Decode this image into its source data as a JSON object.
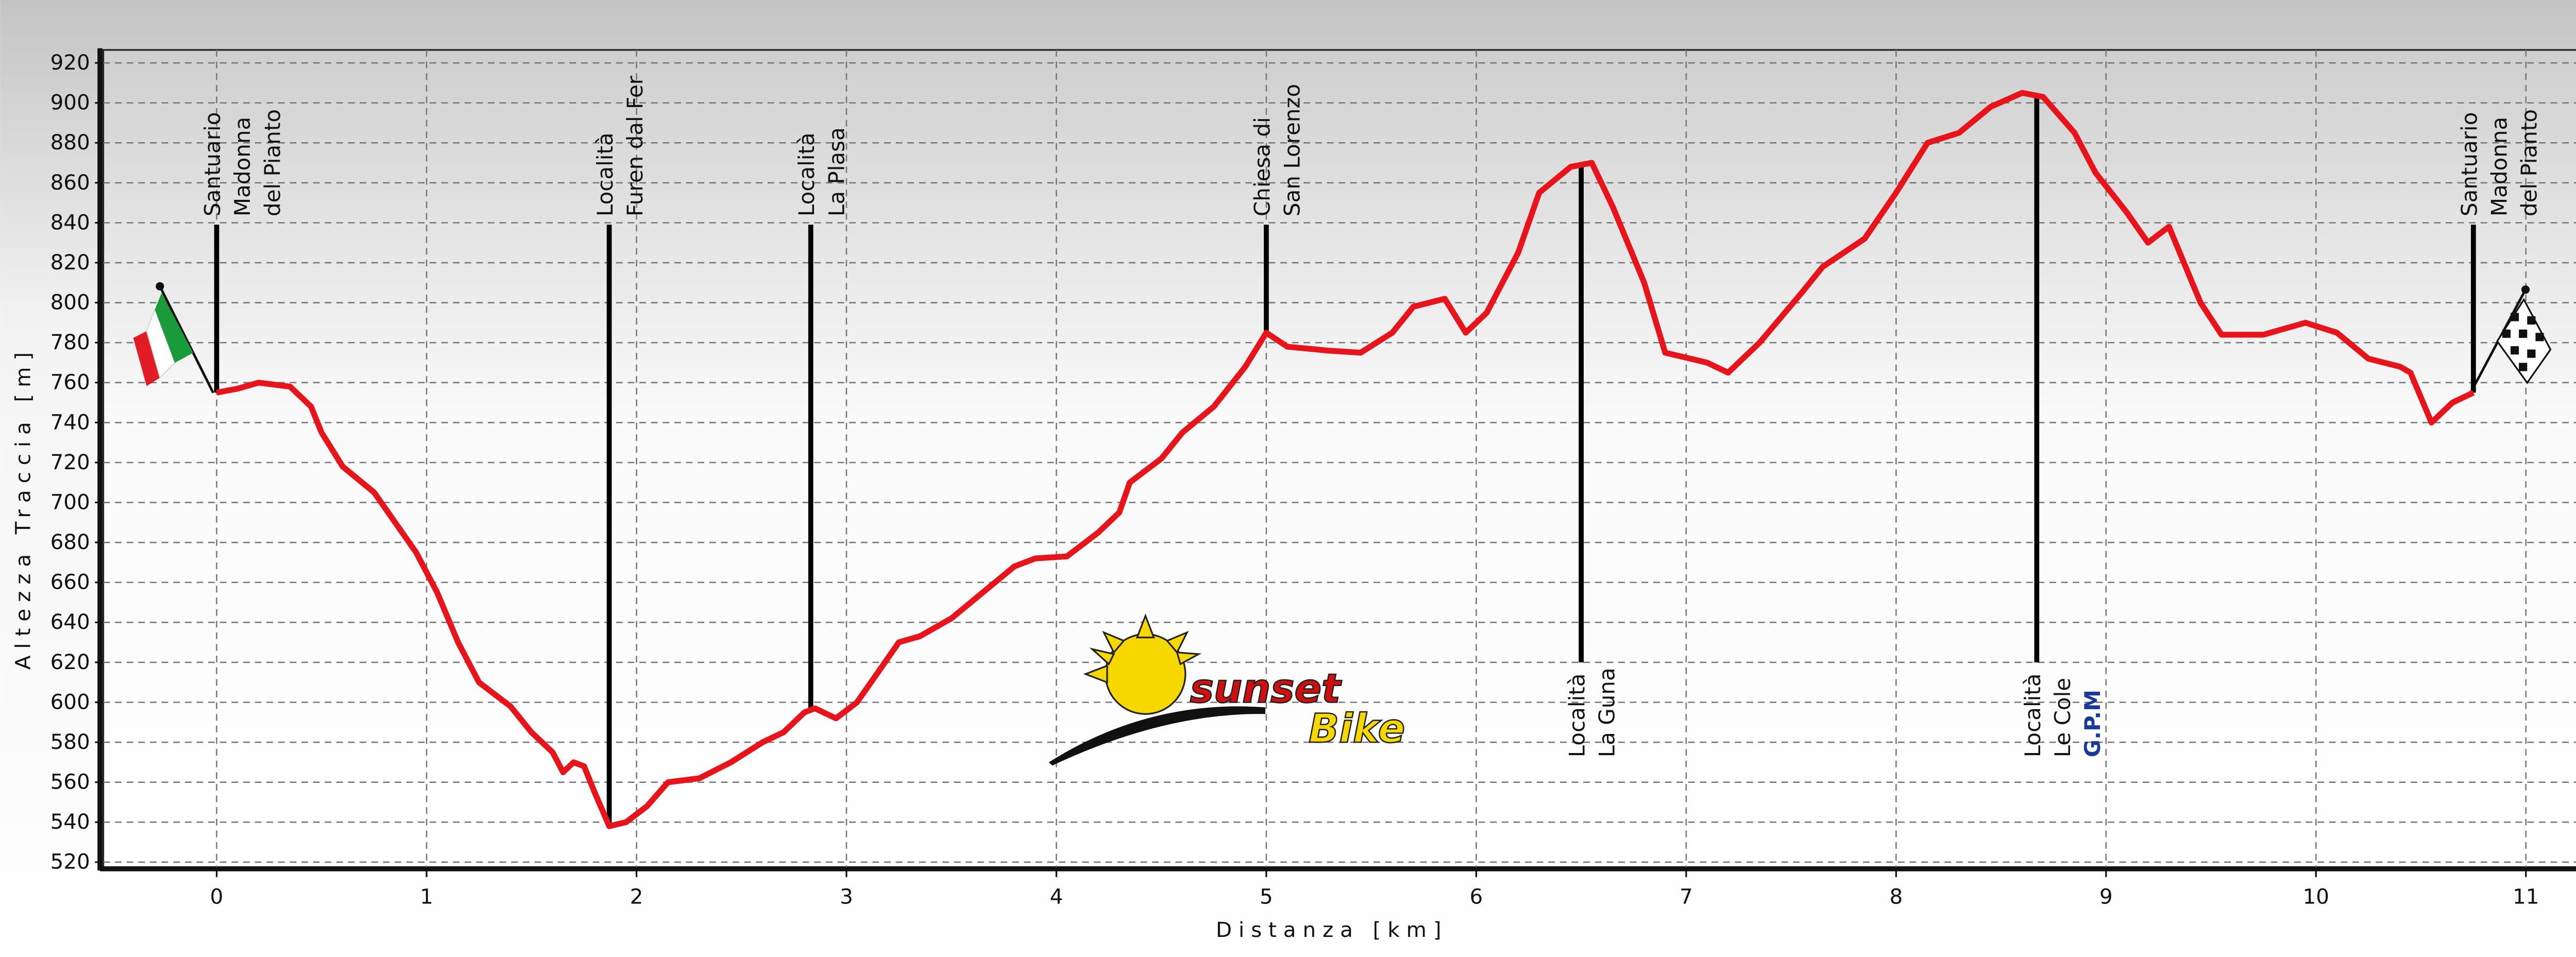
{
  "chart_data": {
    "type": "line",
    "xlabel": "Distanza [km]",
    "ylabel": "Altezza Traccia [m]",
    "color": "#e8141b",
    "grid": true,
    "xlim": [
      -0.54,
      11.26
    ],
    "ylim": [
      517.5,
      926.5
    ],
    "xticks": [
      0,
      1,
      2,
      3,
      4,
      5,
      6,
      7,
      8,
      9,
      10,
      11
    ],
    "yticks": [
      520,
      540,
      560,
      580,
      600,
      620,
      640,
      660,
      680,
      700,
      720,
      740,
      760,
      780,
      800,
      820,
      840,
      860,
      880,
      900,
      920
    ],
    "x": [
      0,
      0.1,
      0.2,
      0.35,
      0.45,
      0.5,
      0.6,
      0.75,
      0.85,
      0.95,
      1.05,
      1.15,
      1.25,
      1.4,
      1.5,
      1.6,
      1.65,
      1.7,
      1.75,
      1.8,
      1.87,
      1.95,
      2.05,
      2.15,
      2.3,
      2.45,
      2.6,
      2.7,
      2.8,
      2.85,
      2.95,
      3.05,
      3.15,
      3.25,
      3.35,
      3.5,
      3.65,
      3.8,
      3.9,
      4.05,
      4.2,
      4.3,
      4.35,
      4.5,
      4.6,
      4.75,
      4.9,
      5.0,
      5.1,
      5.3,
      5.45,
      5.6,
      5.7,
      5.85,
      5.95,
      6.05,
      6.2,
      6.3,
      6.45,
      6.55,
      6.65,
      6.8,
      6.9,
      7.1,
      7.2,
      7.35,
      7.55,
      7.65,
      7.85,
      8.0,
      8.15,
      8.3,
      8.45,
      8.6,
      8.7,
      8.85,
      8.95,
      9.1,
      9.2,
      9.3,
      9.45,
      9.55,
      9.75,
      9.95,
      10.1,
      10.25,
      10.4,
      10.45,
      10.55,
      10.65,
      10.75
    ],
    "values": [
      755,
      757,
      760,
      758,
      748,
      735,
      718,
      705,
      690,
      675,
      655,
      630,
      610,
      598,
      585,
      575,
      565,
      570,
      568,
      555,
      538,
      540,
      548,
      560,
      562,
      570,
      580,
      585,
      595,
      597,
      592,
      600,
      615,
      630,
      633,
      642,
      655,
      668,
      672,
      673,
      685,
      695,
      710,
      722,
      735,
      748,
      768,
      785,
      778,
      776,
      775,
      785,
      798,
      802,
      785,
      795,
      825,
      855,
      868,
      870,
      848,
      810,
      775,
      770,
      765,
      780,
      805,
      818,
      832,
      855,
      880,
      885,
      898,
      905,
      903,
      885,
      865,
      845,
      830,
      838,
      800,
      784,
      784,
      790,
      785,
      772,
      768,
      765,
      740,
      750,
      755
    ],
    "annotations": [
      {
        "x": 0,
        "side": "above",
        "lines": [
          "Santuario",
          "Madonna",
          "del Pianto"
        ]
      },
      {
        "x": 1.87,
        "side": "above",
        "lines": [
          "Località",
          "Furen dal Fer"
        ]
      },
      {
        "x": 2.83,
        "side": "above",
        "lines": [
          "Località",
          "La Plasa"
        ]
      },
      {
        "x": 5.0,
        "side": "above",
        "lines": [
          "Chiesa di",
          "San Lorenzo"
        ]
      },
      {
        "x": 6.5,
        "side": "below",
        "lines": [
          "Località",
          "La Guna"
        ]
      },
      {
        "x": 8.67,
        "side": "below",
        "lines": [
          "Località",
          "Le Cole"
        ],
        "note": "G.P.M"
      },
      {
        "x": 10.75,
        "side": "above",
        "lines": [
          "Santuario",
          "Madonna",
          "del Pianto"
        ]
      }
    ],
    "logo": {
      "line1": "sunset",
      "line2": "Bike"
    }
  }
}
